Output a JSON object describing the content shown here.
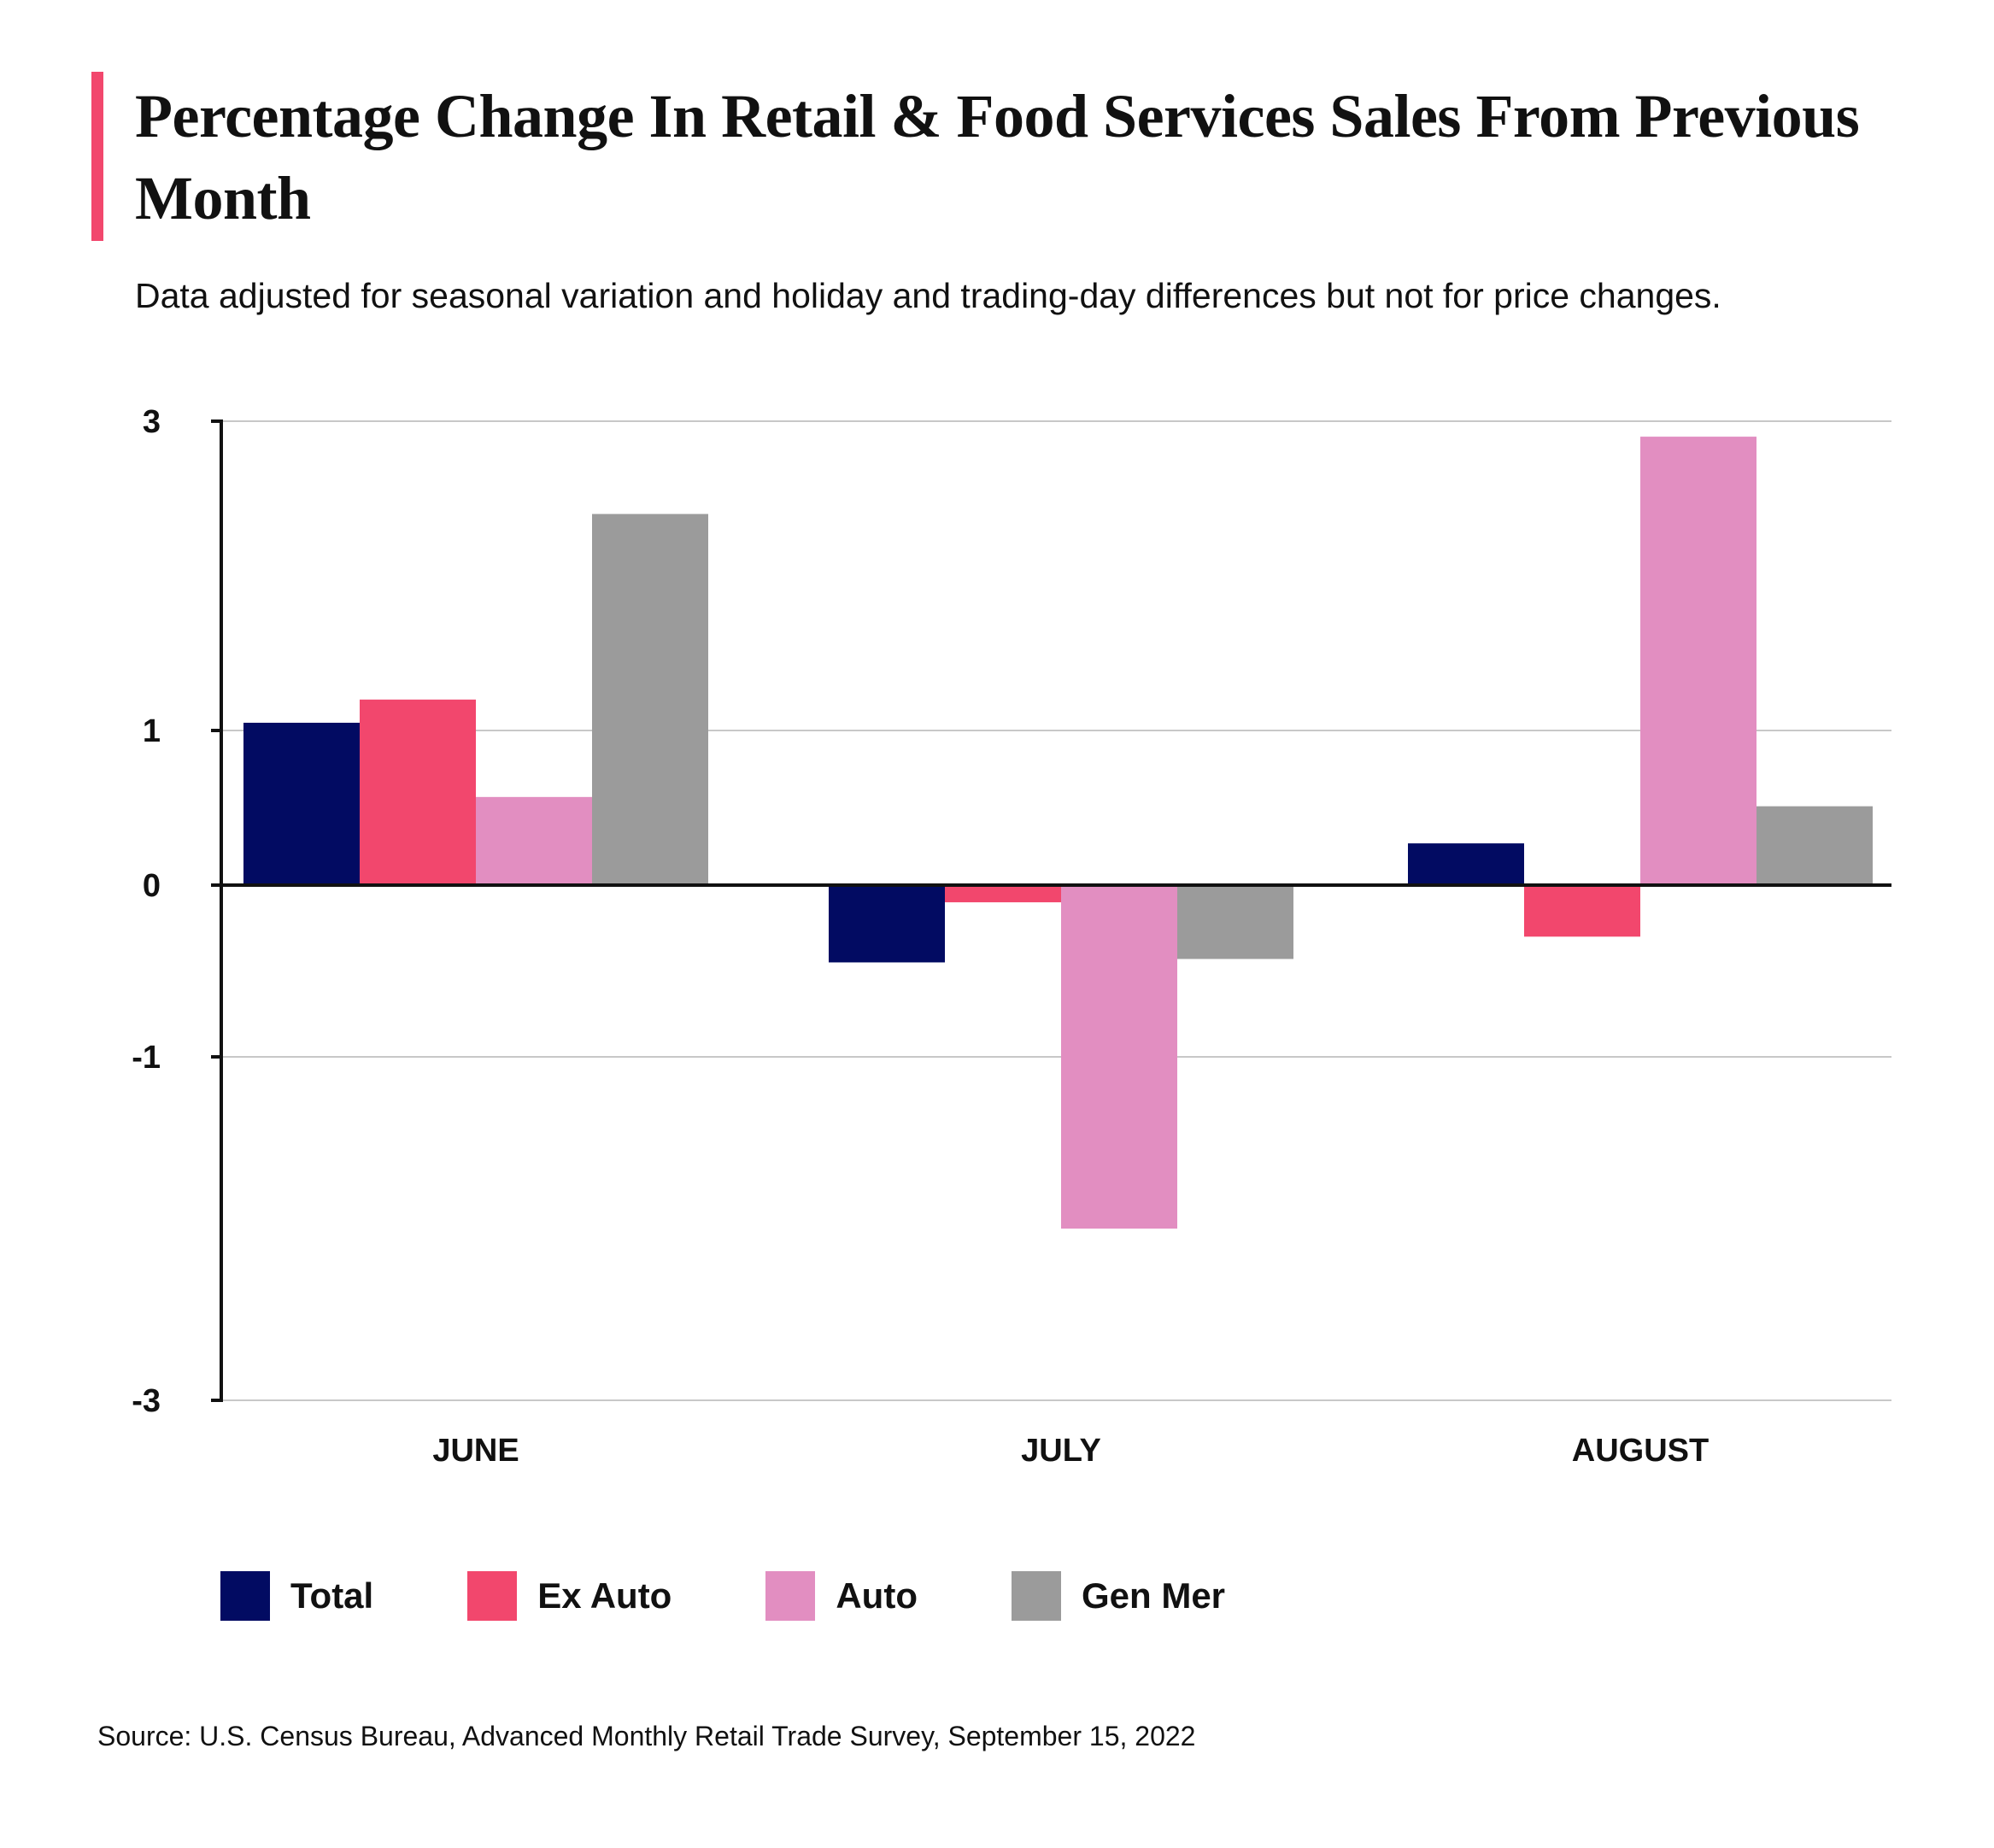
{
  "header": {
    "title": "Percentage Change In Retail & Food Services Sales From Previous Month",
    "subtitle": "Data adjusted for seasonal variation and holiday and trading-day differences but not for price changes."
  },
  "footer": {
    "source": "Source: U.S. Census Bureau, Advanced Monthly Retail Trade Survey, September 15, 2022"
  },
  "colors": {
    "accent": "#f2476d",
    "total": "#020b62",
    "ex_auto": "#f2476d",
    "auto": "#e28ec1",
    "gen_mer": "#9b9b9b"
  },
  "chart_data": {
    "type": "bar",
    "title": "Percentage Change In Retail & Food Services Sales From Previous Month",
    "subtitle": "Data adjusted for seasonal variation and holiday and trading-day differences but not for price changes.",
    "categories": [
      "JUNE",
      "JULY",
      "AUGUST"
    ],
    "series": [
      {
        "name": "Total",
        "color": "#020b62",
        "values": [
          1.05,
          -0.45,
          0.27
        ]
      },
      {
        "name": "Ex Auto",
        "color": "#f2476d",
        "values": [
          1.2,
          -0.1,
          -0.3
        ]
      },
      {
        "name": "Auto",
        "color": "#e28ec1",
        "values": [
          0.57,
          -2.0,
          2.9
        ]
      },
      {
        "name": "Gen Mer",
        "color": "#9b9b9b",
        "values": [
          2.4,
          -0.43,
          0.51
        ]
      }
    ],
    "yticks": [
      3,
      1,
      0,
      -1,
      -3
    ],
    "ytick_labels": [
      "3",
      "1",
      "0",
      "-1",
      "-3"
    ],
    "ylim": [
      -3,
      3
    ],
    "xlabel": "",
    "ylabel": "",
    "grid": true,
    "legend_position": "bottom-left"
  }
}
